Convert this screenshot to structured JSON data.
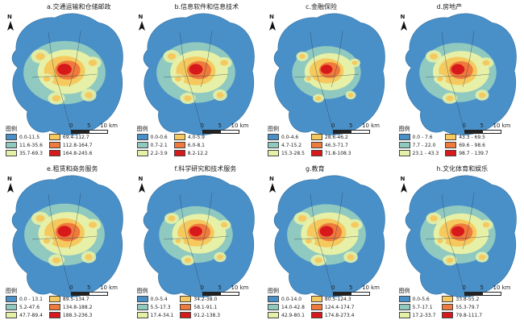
{
  "panels": [
    {
      "title": "a.交通运输和仓储邮政",
      "legend_title": "图例",
      "scale": {
        "t0": "0",
        "t5": "5",
        "t10": "10 km"
      },
      "classes": [
        "0.0-11.5",
        "11.6-35.6",
        "35.7-69.3",
        "69.4-112.7",
        "112.8-164.7",
        "164.8-245.6"
      ]
    },
    {
      "title": "b.信息软件和信息技术",
      "legend_title": "图例",
      "scale": {
        "t0": "0",
        "t5": "5",
        "t10": "10 km"
      },
      "classes": [
        "0.0-0.6",
        "0.7-2.1",
        "2.2-3.9",
        "4.0-5.9",
        "6.0-8.1",
        "8.2-12.2"
      ]
    },
    {
      "title": "c.金融保险",
      "legend_title": "图例",
      "scale": {
        "t0": "0",
        "t5": "5",
        "t10": "10 km"
      },
      "classes": [
        "0.0-4.6",
        "4.7-15.2",
        "15.3-28.5",
        "28.6-46.2",
        "46.3-71.7",
        "71.8-108.3"
      ]
    },
    {
      "title": "d.房地产",
      "legend_title": "图例",
      "scale": {
        "t0": "0",
        "t5": "5",
        "t10": "10 km"
      },
      "classes": [
        "0.0 - 7.6",
        "7.7 - 22.0",
        "23.1 - 43.3",
        "43.3 - 69.5",
        "69.6 - 98.6",
        "98.7 - 139.7"
      ]
    },
    {
      "title": "e.租赁和商务服务",
      "legend_title": "图例",
      "scale": {
        "t0": "0",
        "t5": "5",
        "t10": "10 km"
      },
      "classes": [
        "0.0 - 13.1",
        "5.2-47.6",
        "47.7-89.4",
        "89.5-134.7",
        "134.8-188.2",
        "188.3-236.3"
      ]
    },
    {
      "title": "f.科学研究和技术服务",
      "legend_title": "图例",
      "scale": {
        "t0": "0",
        "t5": "5",
        "t10": "10 km"
      },
      "classes": [
        "0.0-5.4",
        "5.5-17.3",
        "17.4-34.1",
        "34.2-38.0",
        "58.1-91.1",
        "91.2-138.3"
      ]
    },
    {
      "title": "g.教育",
      "legend_title": "图例",
      "scale": {
        "t0": "0",
        "t5": "5",
        "t10": "10 km"
      },
      "classes": [
        "0.0-14.0",
        "14.0-42.8",
        "42.9-80.1",
        "80.5-124.3",
        "124.4-174.7",
        "174.8-273.4"
      ]
    },
    {
      "title": "h.文化体育和娱乐",
      "legend_title": "图例",
      "scale": {
        "t0": "0",
        "t5": "5",
        "t10": "10 km"
      },
      "classes": [
        "0.0-5.6",
        "5.7-17.1",
        "17.2-33.7",
        "33.8-55.2",
        "55.3-79.7",
        "79.8-111.7"
      ]
    }
  ],
  "north_label": "N",
  "colors": [
    "#4a90c8",
    "#8fc9c0",
    "#e6f0a6",
    "#f6c95e",
    "#ef7a3c",
    "#d7191c"
  ],
  "intensity": [
    0.95,
    0.85,
    0.55,
    0.8,
    0.9,
    0.7,
    0.85,
    0.75
  ]
}
